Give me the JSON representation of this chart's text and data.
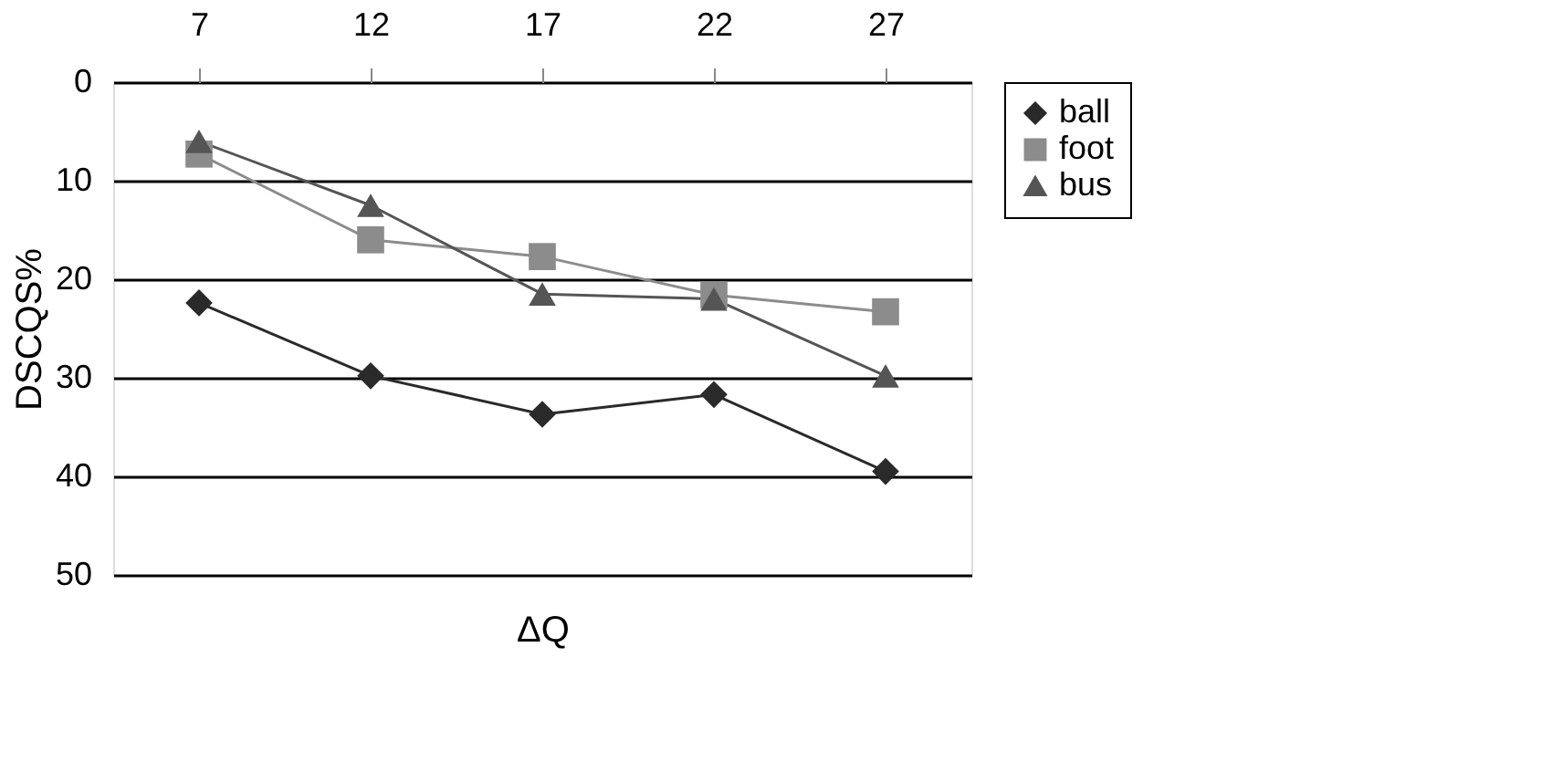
{
  "chart_data": {
    "type": "line",
    "xlabel": "ΔQ",
    "ylabel": "DSCQS%",
    "categories": [
      "7",
      "12",
      "17",
      "22",
      "27"
    ],
    "series": [
      {
        "name": "ball",
        "color": "#2a2a2a",
        "marker": "diamond",
        "values": [
          22.4,
          29.8,
          33.7,
          31.7,
          39.5
        ]
      },
      {
        "name": "foot",
        "color": "#8c8c8c",
        "marker": "square",
        "values": [
          7.3,
          16,
          17.7,
          21.6,
          23.3
        ]
      },
      {
        "name": "bus",
        "color": "#555555",
        "marker": "triangle",
        "values": [
          6,
          12.5,
          21.5,
          22,
          29.8
        ]
      }
    ],
    "ylim": [
      50,
      0
    ],
    "yticks": [
      0,
      10,
      20,
      30,
      40,
      50
    ],
    "grid": "y",
    "legend": "right",
    "line_style": "solid"
  }
}
